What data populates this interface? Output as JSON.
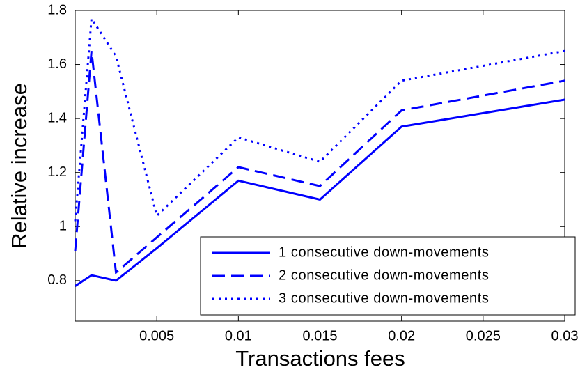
{
  "chart_data": {
    "type": "line",
    "xlabel": "Transactions fees",
    "ylabel": "Relative increase",
    "x": [
      0,
      0.001,
      0.0025,
      0.005,
      0.01,
      0.015,
      0.02,
      0.03
    ],
    "series": [
      {
        "name": "1 consecutive down-movements",
        "color": "#0000ff",
        "linestyle": "solid",
        "values": [
          0.78,
          0.82,
          0.8,
          0.92,
          1.17,
          1.1,
          1.37,
          1.47
        ]
      },
      {
        "name": "2 consecutive down-movements",
        "color": "#0000ff",
        "linestyle": "dashed",
        "values": [
          0.91,
          1.65,
          0.83,
          0.96,
          1.22,
          1.15,
          1.43,
          1.54
        ]
      },
      {
        "name": "3 consecutive down-movements",
        "color": "#0000ff",
        "linestyle": "dotted",
        "values": [
          1.02,
          1.77,
          1.63,
          1.04,
          1.33,
          1.24,
          1.54,
          1.65
        ]
      }
    ],
    "xlim": [
      0,
      0.03
    ],
    "xticks": [
      0.005,
      0.01,
      0.015,
      0.02,
      0.025,
      0.03
    ],
    "ylim": [
      0.65,
      1.8
    ],
    "yticks": [
      0.8,
      1,
      1.2,
      1.4,
      1.6,
      1.8
    ],
    "legend": "lower right"
  }
}
